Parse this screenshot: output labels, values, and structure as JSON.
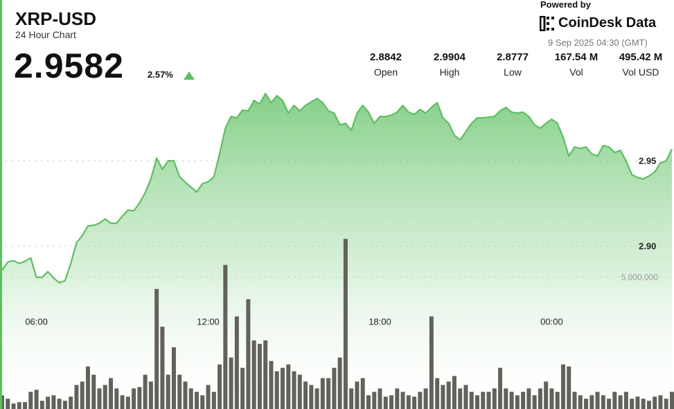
{
  "chart_data": {
    "type": "line",
    "title": "XRP-USD",
    "subtitle": "24 Hour Chart",
    "last_price": 2.9582,
    "change": {
      "value": 2.57,
      "label": "2.57%"
    },
    "powered_by": "Powered by",
    "brand": "CoinDesk Data",
    "timestamp": "9 Sep 2025 04:30 (GMT)",
    "stats": [
      {
        "name": "Open",
        "value": 2.8842
      },
      {
        "name": "High",
        "value": 2.9904
      },
      {
        "name": "Low",
        "value": 2.8777
      },
      {
        "name": "Vol",
        "value": "167.54 M"
      },
      {
        "name": "Vol USD",
        "value": "495.42 M"
      }
    ],
    "categories": [
      null,
      null,
      null,
      null,
      null,
      null,
      "06:00",
      null,
      null,
      null,
      null,
      null,
      null,
      null,
      null,
      null,
      null,
      null,
      null,
      null,
      null,
      null,
      null,
      null,
      null,
      null,
      null,
      null,
      null,
      null,
      null,
      null,
      null,
      null,
      null,
      null,
      "12:00",
      null,
      null,
      null,
      null,
      null,
      null,
      null,
      null,
      null,
      null,
      null,
      null,
      null,
      null,
      null,
      null,
      null,
      null,
      null,
      null,
      null,
      null,
      null,
      null,
      null,
      null,
      null,
      null,
      null,
      "18:00",
      null,
      null,
      null,
      null,
      null,
      null,
      null,
      null,
      null,
      null,
      null,
      null,
      null,
      null,
      null,
      null,
      null,
      null,
      null,
      null,
      null,
      null,
      null,
      null,
      null,
      null,
      null,
      null,
      null,
      "00:00",
      null,
      null,
      null,
      null,
      null,
      null,
      null,
      null,
      null,
      null,
      null,
      null,
      null,
      null,
      null,
      null,
      null,
      null,
      null,
      null,
      null
    ],
    "series": [
      {
        "type": "line",
        "color": "#5cbf60",
        "values": [
          2.8858,
          2.8907,
          2.8915,
          2.8898,
          2.8911,
          2.8931,
          2.8817,
          2.8817,
          2.885,
          2.8813,
          2.8785,
          2.8797,
          2.8898,
          2.902,
          2.9061,
          2.9118,
          2.9122,
          2.9134,
          2.9159,
          2.9134,
          2.9134,
          2.9175,
          2.9211,
          2.9207,
          2.9252,
          2.9313,
          2.9394,
          2.9516,
          2.9451,
          2.95,
          2.95,
          2.9407,
          2.9374,
          2.9346,
          2.9317,
          2.9366,
          2.9378,
          2.9407,
          2.9541,
          2.9691,
          2.976,
          2.9752,
          2.9797,
          2.9793,
          2.9854,
          2.9833,
          2.9894,
          2.9841,
          2.9882,
          2.9854,
          2.978,
          2.9825,
          2.9793,
          2.9825,
          2.9846,
          2.9866,
          2.9841,
          2.9793,
          2.978,
          2.9711,
          2.972,
          2.9679,
          2.978,
          2.9825,
          2.9785,
          2.972,
          2.976,
          2.976,
          2.9768,
          2.9785,
          2.9825,
          2.9785,
          2.9772,
          2.9801,
          2.978,
          2.9813,
          2.9841,
          2.9752,
          2.972,
          2.965,
          2.9622,
          2.9671,
          2.972,
          2.9752,
          2.9752,
          2.9756,
          2.976,
          2.9793,
          2.9813,
          2.9785,
          2.978,
          2.9785,
          2.976,
          2.9711,
          2.9691,
          2.972,
          2.9744,
          2.972,
          2.9638,
          2.9528,
          2.9581,
          2.9573,
          2.9581,
          2.9541,
          2.9528,
          2.9589,
          2.9581,
          2.9549,
          2.9561,
          2.95,
          2.9419,
          2.9402,
          2.9394,
          2.9411,
          2.9435,
          2.9488,
          2.95,
          2.9569
        ]
      },
      {
        "type": "bar",
        "axis": "y2",
        "color": "#62625a",
        "values": [
          520000,
          390000,
          208000,
          260000,
          260000,
          650000,
          728000,
          312000,
          468000,
          520000,
          390000,
          312000,
          468000,
          910000,
          1040000,
          1612000,
          1300000,
          780000,
          910000,
          1170000,
          780000,
          520000,
          468000,
          780000,
          832000,
          1300000,
          1040000,
          4550000,
          3120000,
          1300000,
          2340000,
          1300000,
          1040000,
          780000,
          650000,
          520000,
          910000,
          650000,
          1690000,
          5460000,
          1950000,
          3510000,
          1560000,
          4160000,
          2600000,
          2470000,
          2600000,
          1820000,
          1430000,
          1560000,
          1690000,
          1430000,
          1300000,
          1040000,
          910000,
          780000,
          1170000,
          1170000,
          1560000,
          1950000,
          6448000,
          780000,
          1040000,
          1170000,
          520000,
          650000,
          780000,
          468000,
          520000,
          780000,
          650000,
          520000,
          468000,
          650000,
          780000,
          3510000,
          1170000,
          910000,
          1040000,
          1248000,
          780000,
          910000,
          650000,
          520000,
          650000,
          650000,
          780000,
          1560000,
          780000,
          650000,
          520000,
          650000,
          780000,
          520000,
          780000,
          1040000,
          780000,
          650000,
          1690000,
          1612000,
          650000,
          520000,
          390000,
          520000,
          650000,
          520000,
          390000,
          650000,
          520000,
          650000,
          390000,
          468000,
          390000,
          312000,
          468000,
          520000,
          390000,
          650000
        ]
      }
    ],
    "ylim": [
      2.8045,
      3.0443
    ],
    "yticks": [
      2.95,
      {
        "value": 2.9,
        "label": "2.90"
      }
    ],
    "y2lim": [
      0,
      15500000
    ],
    "y2ticks": [
      {
        "value": 5000000,
        "label": "5,000,000"
      }
    ],
    "grid": true
  }
}
